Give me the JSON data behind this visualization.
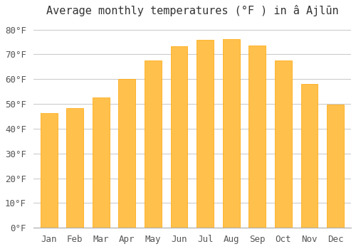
{
  "title": "Average monthly temperatures (°F ) in â Ajlūn",
  "months": [
    "Jan",
    "Feb",
    "Mar",
    "Apr",
    "May",
    "Jun",
    "Jul",
    "Aug",
    "Sep",
    "Oct",
    "Nov",
    "Dec"
  ],
  "values": [
    46.4,
    48.2,
    52.7,
    60.1,
    67.5,
    73.2,
    75.9,
    76.1,
    73.6,
    67.5,
    58.1,
    49.8
  ],
  "bar_color_face": "#FFC04C",
  "bar_color_edge": "#FFA500",
  "background_color": "#FFFFFF",
  "grid_color": "#CCCCCC",
  "yticks": [
    0,
    10,
    20,
    30,
    40,
    50,
    60,
    70,
    80
  ],
  "ytick_labels": [
    "0°F",
    "10°F",
    "20°F",
    "30°F",
    "40°F",
    "50°F",
    "60°F",
    "70°F",
    "80°F"
  ],
  "ylim": [
    0,
    83
  ],
  "title_fontsize": 11,
  "tick_fontsize": 9,
  "font_family": "monospace"
}
